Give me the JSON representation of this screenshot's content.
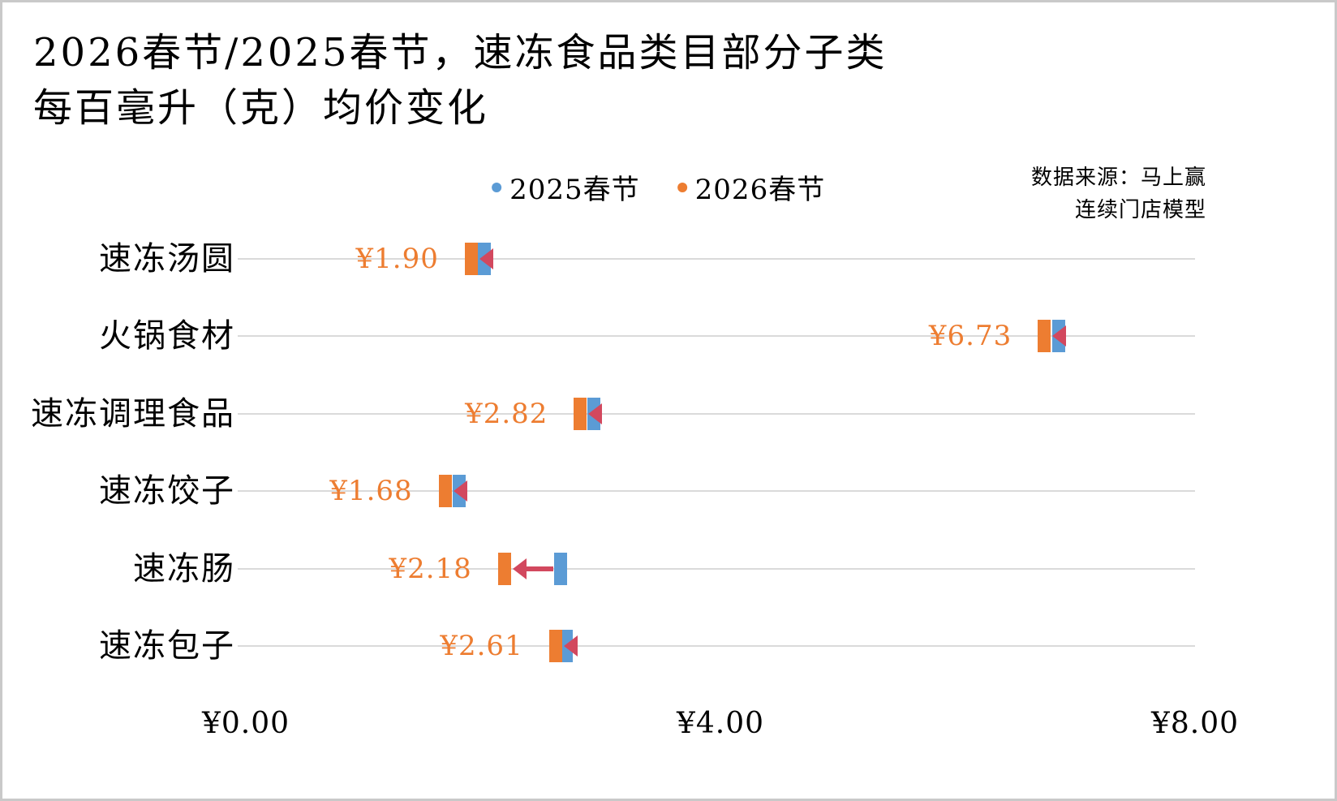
{
  "title": {
    "line1": "2026春节/2025春节，速冻食品类目部分子类",
    "line2": "每百毫升（克）均价变化"
  },
  "source": {
    "line1": "数据来源：马上赢",
    "line2": "连续门店模型"
  },
  "legend": [
    {
      "label": "2025春节",
      "color": "#5B9BD5"
    },
    {
      "label": "2026春节",
      "color": "#ED7D31"
    }
  ],
  "colors": {
    "blue": "#5B9BD5",
    "orange": "#ED7D31",
    "arrow": "#D2485E",
    "grid": "#DADADA",
    "border": "#C9C9C9"
  },
  "chart_data": {
    "type": "dumbbell-arrow",
    "title": "2026春节/2025春节，速冻食品类目部分子类每百毫升（克）均价变化",
    "categories": [
      "速冻汤圆",
      "火锅食材",
      "速冻调理食品",
      "速冻饺子",
      "速冻肠",
      "速冻包子"
    ],
    "series": [
      {
        "name": "2025春节",
        "values": [
          2.01,
          6.85,
          2.93,
          1.8,
          2.65,
          2.7
        ]
      },
      {
        "name": "2026春节",
        "values": [
          1.9,
          6.73,
          2.82,
          1.68,
          2.18,
          2.61
        ]
      }
    ],
    "labels": [
      "¥1.90",
      "¥6.73",
      "¥2.82",
      "¥1.68",
      "¥2.18",
      "¥2.61"
    ],
    "xlabel": "",
    "ylabel": "",
    "xlim": [
      0,
      8
    ],
    "x_ticks": [
      "¥0.00",
      "¥4.00",
      "¥8.00"
    ],
    "x_tick_values": [
      0,
      4,
      8
    ],
    "grid": "horizontal-category-lines",
    "legend_position": "top-center",
    "note": "Arrows point from 2025 value (blue) to 2026 value (orange); all categories show a price decrease."
  }
}
